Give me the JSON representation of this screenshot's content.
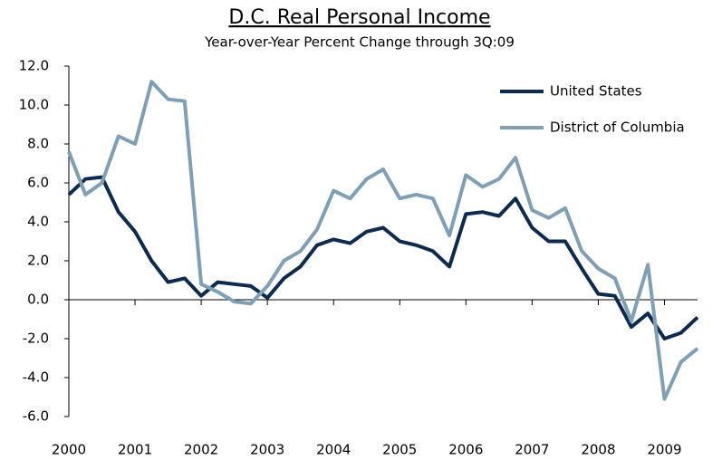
{
  "chart_data": {
    "type": "line",
    "title": "D.C. Real Personal Income",
    "subtitle": "Year-over-Year Percent Change through 3Q:09",
    "x": [
      2000,
      2000.25,
      2000.5,
      2000.75,
      2001,
      2001.25,
      2001.5,
      2001.75,
      2002,
      2002.25,
      2002.5,
      2002.75,
      2003,
      2003.25,
      2003.5,
      2003.75,
      2004,
      2004.25,
      2004.5,
      2004.75,
      2005,
      2005.25,
      2005.5,
      2005.75,
      2006,
      2006.25,
      2006.5,
      2006.75,
      2007,
      2007.25,
      2007.5,
      2007.75,
      2008,
      2008.25,
      2008.5,
      2008.75,
      2009,
      2009.25,
      2009.5
    ],
    "series": [
      {
        "name": "United States",
        "color": "#0d2a4f",
        "values": [
          5.4,
          6.2,
          6.3,
          4.5,
          3.5,
          2.0,
          0.9,
          1.1,
          0.2,
          0.9,
          0.8,
          0.7,
          0.1,
          1.1,
          1.7,
          2.8,
          3.1,
          2.9,
          3.5,
          3.7,
          3.0,
          2.8,
          2.5,
          1.7,
          4.4,
          4.5,
          4.3,
          5.2,
          3.7,
          3.0,
          3.0,
          1.6,
          0.3,
          0.2,
          -1.4,
          -0.7,
          -2.0,
          -1.7,
          -0.9
        ]
      },
      {
        "name": "District of Columbia",
        "color": "#7f9fb5",
        "values": [
          7.6,
          5.4,
          6.0,
          8.4,
          8.0,
          11.2,
          10.3,
          10.2,
          0.8,
          0.4,
          -0.1,
          -0.2,
          0.7,
          2.0,
          2.5,
          3.6,
          5.6,
          5.2,
          6.2,
          6.7,
          5.2,
          5.4,
          5.2,
          3.3,
          6.4,
          5.8,
          6.2,
          7.3,
          4.6,
          4.2,
          4.7,
          2.5,
          1.6,
          1.1,
          -1.1,
          1.8,
          -5.1,
          -3.2,
          -2.5
        ]
      }
    ],
    "xlim": [
      2000,
      2009.5
    ],
    "xticks": [
      2000,
      2001,
      2002,
      2003,
      2004,
      2005,
      2006,
      2007,
      2008,
      2009
    ],
    "ylim": [
      -6,
      12
    ],
    "yticks": [
      {
        "value": -6,
        "label": "-6.0"
      },
      {
        "value": -4,
        "label": "-4.0"
      },
      {
        "value": -2,
        "label": "-2.0"
      },
      {
        "value": 0,
        "label": "0.0"
      },
      {
        "value": 2,
        "label": "2.0"
      },
      {
        "value": 4,
        "label": "4.0"
      },
      {
        "value": 6,
        "label": "6.0"
      },
      {
        "value": 8,
        "label": "8.0"
      },
      {
        "value": 10,
        "label": "10.0"
      },
      {
        "value": 12,
        "label": "12.0"
      }
    ],
    "legend": "top-right"
  }
}
